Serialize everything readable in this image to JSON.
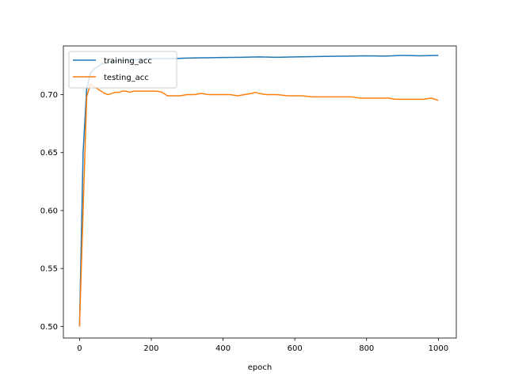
{
  "chart_data": {
    "type": "line",
    "title": "",
    "xlabel": "epoch",
    "ylabel": "",
    "xlim": [
      -45,
      1050
    ],
    "ylim": [
      0.49,
      0.742
    ],
    "xticks": [
      0,
      200,
      400,
      600,
      800,
      1000
    ],
    "xtick_labels": [
      "0",
      "200",
      "400",
      "600",
      "800",
      "1000"
    ],
    "yticks": [
      0.5,
      0.55,
      0.6,
      0.65,
      0.7
    ],
    "ytick_labels": [
      "0.50",
      "0.55",
      "0.60",
      "0.65",
      "0.70"
    ],
    "grid": false,
    "legend_placement": "upper-left",
    "series": [
      {
        "name": "training_acc",
        "color": "#1f77b4",
        "x": [
          0,
          10,
          20,
          30,
          40,
          60,
          80,
          100,
          150,
          200,
          250,
          300,
          350,
          400,
          450,
          500,
          550,
          600,
          650,
          700,
          750,
          800,
          850,
          900,
          950,
          1000
        ],
        "y": [
          0.5,
          0.65,
          0.705,
          0.718,
          0.722,
          0.726,
          0.728,
          0.729,
          0.73,
          0.731,
          0.731,
          0.7315,
          0.7318,
          0.732,
          0.7322,
          0.7325,
          0.7322,
          0.7325,
          0.7328,
          0.733,
          0.7332,
          0.7335,
          0.7332,
          0.7338,
          0.7335,
          0.7338
        ]
      },
      {
        "name": "testing_acc",
        "color": "#ff7f0e",
        "x": [
          0,
          10,
          20,
          30,
          40,
          50,
          60,
          70,
          80,
          90,
          100,
          110,
          120,
          130,
          140,
          150,
          160,
          180,
          200,
          215,
          230,
          245,
          260,
          280,
          300,
          320,
          340,
          360,
          380,
          400,
          420,
          440,
          460,
          480,
          490,
          500,
          520,
          550,
          580,
          600,
          620,
          650,
          680,
          700,
          740,
          760,
          780,
          800,
          820,
          840,
          860,
          880,
          900,
          920,
          940,
          960,
          980,
          1000
        ],
        "y": [
          0.5,
          0.6,
          0.698,
          0.709,
          0.707,
          0.705,
          0.703,
          0.701,
          0.7,
          0.701,
          0.702,
          0.702,
          0.703,
          0.703,
          0.702,
          0.703,
          0.703,
          0.703,
          0.703,
          0.703,
          0.702,
          0.699,
          0.699,
          0.699,
          0.7,
          0.7,
          0.701,
          0.7,
          0.7,
          0.7,
          0.7,
          0.699,
          0.7,
          0.701,
          0.702,
          0.701,
          0.7,
          0.7,
          0.699,
          0.699,
          0.699,
          0.698,
          0.698,
          0.698,
          0.698,
          0.698,
          0.697,
          0.697,
          0.697,
          0.697,
          0.697,
          0.696,
          0.696,
          0.696,
          0.696,
          0.696,
          0.697,
          0.695
        ]
      }
    ]
  }
}
